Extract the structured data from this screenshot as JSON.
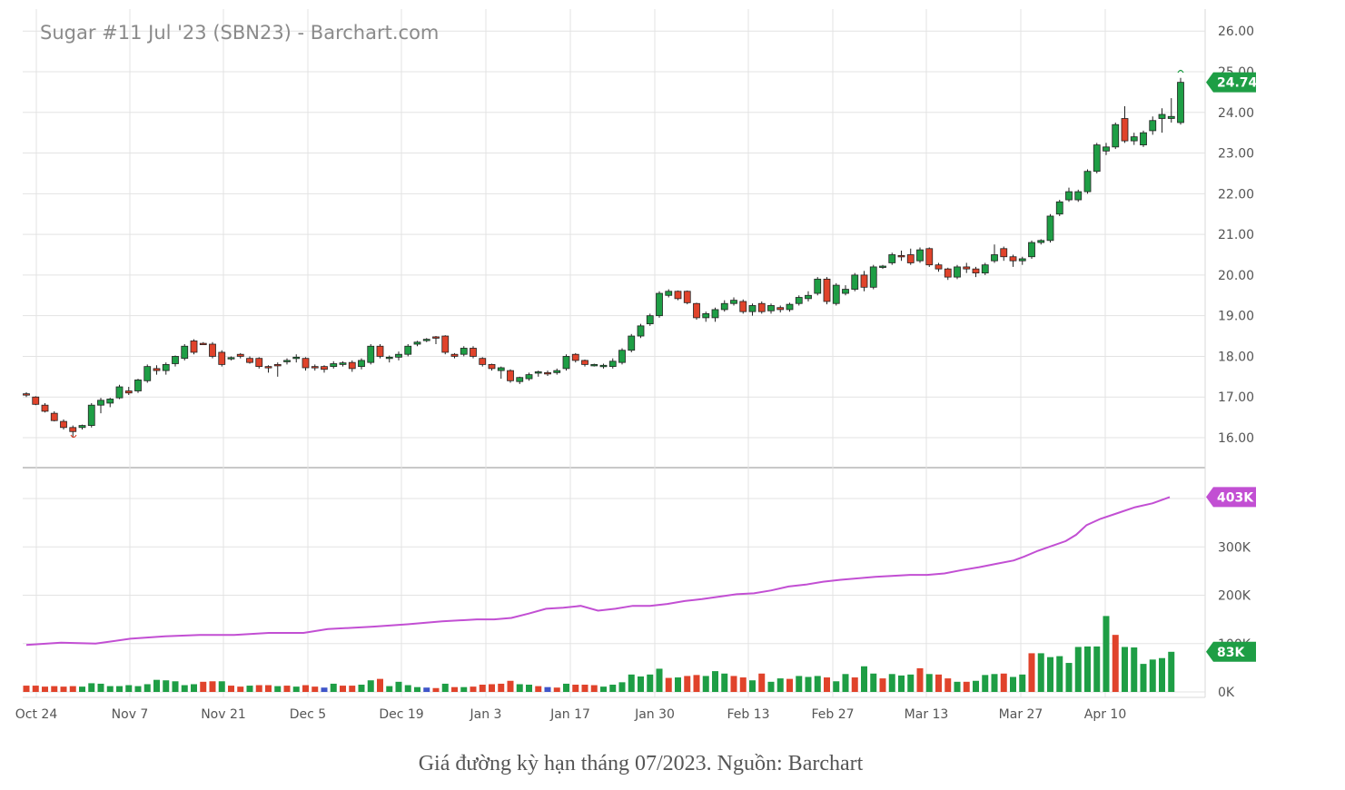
{
  "caption": "Giá đường kỳ hạn tháng 07/2023. Nguồn: Barchart",
  "chart_data": {
    "type": "candlestick",
    "title": "Sugar #11 Jul '23 (SBN23) - Barchart.com",
    "price_axis": {
      "range": [
        15.3,
        26.4
      ],
      "ticks": [
        "26.00",
        "25.00",
        "24.00",
        "23.00",
        "22.00",
        "21.00",
        "20.00",
        "19.00",
        "18.00",
        "17.00",
        "16.00"
      ],
      "last_value_label": "24.74"
    },
    "volume_axis": {
      "range": [
        0,
        420000
      ],
      "ticks": [
        "400K",
        "300K",
        "200K",
        "100K",
        "0K"
      ],
      "open_interest_label": "403K",
      "volume_label": "83K"
    },
    "x_ticks": [
      "Oct 24",
      "Nov 7",
      "Nov 21",
      "Dec 5",
      "Dec 19",
      "Jan 3",
      "Jan 17",
      "Jan 30",
      "Feb 13",
      "Feb 27",
      "Mar 13",
      "Mar 27",
      "Apr 10"
    ],
    "grid": true,
    "colors": {
      "up": "#1e9e45",
      "down": "#e0432b",
      "open_interest": "#c24fd3",
      "unchanged": "#3f55c9",
      "last_label_bg": "#1e9e45",
      "oi_label_bg": "#c24fd3"
    },
    "candles": [
      [
        17.08,
        17.12,
        17.0,
        17.05
      ],
      [
        17.0,
        17.02,
        16.8,
        16.82
      ],
      [
        16.8,
        16.85,
        16.62,
        16.65
      ],
      [
        16.6,
        16.65,
        16.4,
        16.42
      ],
      [
        16.4,
        16.45,
        16.2,
        16.25
      ],
      [
        16.25,
        16.3,
        16.0,
        16.15
      ],
      [
        16.25,
        16.32,
        16.2,
        16.3
      ],
      [
        16.3,
        16.85,
        16.25,
        16.8
      ],
      [
        16.8,
        16.98,
        16.6,
        16.92
      ],
      [
        16.85,
        16.98,
        16.75,
        16.95
      ],
      [
        16.98,
        17.3,
        16.95,
        17.25
      ],
      [
        17.15,
        17.25,
        17.05,
        17.1
      ],
      [
        17.15,
        17.45,
        17.1,
        17.42
      ],
      [
        17.4,
        17.8,
        17.35,
        17.75
      ],
      [
        17.7,
        17.78,
        17.55,
        17.65
      ],
      [
        17.65,
        17.85,
        17.55,
        17.8
      ],
      [
        17.82,
        18.02,
        17.75,
        18.0
      ],
      [
        17.95,
        18.3,
        17.9,
        18.25
      ],
      [
        18.38,
        18.42,
        18.05,
        18.1
      ],
      [
        18.32,
        18.35,
        18.28,
        18.3
      ],
      [
        18.3,
        18.35,
        17.95,
        18.0
      ],
      [
        18.1,
        18.15,
        17.75,
        17.8
      ],
      [
        17.95,
        18.0,
        17.9,
        17.97
      ],
      [
        18.05,
        18.08,
        17.95,
        18.0
      ],
      [
        17.95,
        18.0,
        17.82,
        17.85
      ],
      [
        17.95,
        17.98,
        17.7,
        17.75
      ],
      [
        17.75,
        17.78,
        17.6,
        17.72
      ],
      [
        17.8,
        17.85,
        17.5,
        17.78
      ],
      [
        17.88,
        17.95,
        17.8,
        17.9
      ],
      [
        17.95,
        18.05,
        17.85,
        17.98
      ],
      [
        17.95,
        17.98,
        17.65,
        17.72
      ],
      [
        17.75,
        17.8,
        17.65,
        17.72
      ],
      [
        17.75,
        17.78,
        17.6,
        17.68
      ],
      [
        17.75,
        17.88,
        17.7,
        17.82
      ],
      [
        17.8,
        17.88,
        17.75,
        17.84
      ],
      [
        17.85,
        17.9,
        17.62,
        17.7
      ],
      [
        17.75,
        17.95,
        17.68,
        17.9
      ],
      [
        17.85,
        18.3,
        17.8,
        18.25
      ],
      [
        18.25,
        18.3,
        17.95,
        18.0
      ],
      [
        17.95,
        18.02,
        17.85,
        17.98
      ],
      [
        17.98,
        18.12,
        17.9,
        18.05
      ],
      [
        18.05,
        18.3,
        18.0,
        18.25
      ],
      [
        18.3,
        18.38,
        18.25,
        18.35
      ],
      [
        18.4,
        18.45,
        18.35,
        18.42
      ],
      [
        18.48,
        18.5,
        18.3,
        18.45
      ],
      [
        18.5,
        18.52,
        18.05,
        18.1
      ],
      [
        18.05,
        18.08,
        17.95,
        18.0
      ],
      [
        18.05,
        18.25,
        18.0,
        18.2
      ],
      [
        18.2,
        18.25,
        17.95,
        18.0
      ],
      [
        17.95,
        17.98,
        17.75,
        17.8
      ],
      [
        17.8,
        17.82,
        17.65,
        17.7
      ],
      [
        17.65,
        17.75,
        17.45,
        17.72
      ],
      [
        17.65,
        17.68,
        17.35,
        17.4
      ],
      [
        17.38,
        17.5,
        17.32,
        17.48
      ],
      [
        17.45,
        17.6,
        17.4,
        17.55
      ],
      [
        17.6,
        17.65,
        17.5,
        17.62
      ],
      [
        17.6,
        17.65,
        17.52,
        17.58
      ],
      [
        17.6,
        17.7,
        17.55,
        17.65
      ],
      [
        17.7,
        18.05,
        17.65,
        18.0
      ],
      [
        18.05,
        18.08,
        17.85,
        17.9
      ],
      [
        17.9,
        17.92,
        17.75,
        17.8
      ],
      [
        17.78,
        17.82,
        17.75,
        17.8
      ],
      [
        17.78,
        17.82,
        17.7,
        17.78
      ],
      [
        17.75,
        17.95,
        17.7,
        17.88
      ],
      [
        17.85,
        18.2,
        17.8,
        18.15
      ],
      [
        18.15,
        18.55,
        18.1,
        18.5
      ],
      [
        18.5,
        18.8,
        18.45,
        18.75
      ],
      [
        18.8,
        19.05,
        18.75,
        19.0
      ],
      [
        19.0,
        19.6,
        18.95,
        19.55
      ],
      [
        19.5,
        19.65,
        19.45,
        19.6
      ],
      [
        19.6,
        19.62,
        19.38,
        19.42
      ],
      [
        19.6,
        19.62,
        19.28,
        19.32
      ],
      [
        19.3,
        19.32,
        18.9,
        18.95
      ],
      [
        18.95,
        19.1,
        18.85,
        19.05
      ],
      [
        18.95,
        19.2,
        18.85,
        19.15
      ],
      [
        19.15,
        19.38,
        19.1,
        19.3
      ],
      [
        19.3,
        19.45,
        19.25,
        19.38
      ],
      [
        19.35,
        19.4,
        19.05,
        19.1
      ],
      [
        19.1,
        19.3,
        19.0,
        19.25
      ],
      [
        19.3,
        19.35,
        19.05,
        19.1
      ],
      [
        19.12,
        19.3,
        19.05,
        19.25
      ],
      [
        19.2,
        19.25,
        19.08,
        19.15
      ],
      [
        19.15,
        19.32,
        19.1,
        19.28
      ],
      [
        19.3,
        19.5,
        19.25,
        19.45
      ],
      [
        19.42,
        19.6,
        19.35,
        19.5
      ],
      [
        19.55,
        19.95,
        19.5,
        19.9
      ],
      [
        19.9,
        19.95,
        19.28,
        19.35
      ],
      [
        19.3,
        19.8,
        19.25,
        19.75
      ],
      [
        19.55,
        19.75,
        19.5,
        19.65
      ],
      [
        19.65,
        20.05,
        19.6,
        20.0
      ],
      [
        20.0,
        20.1,
        19.6,
        19.7
      ],
      [
        19.7,
        20.25,
        19.65,
        20.2
      ],
      [
        20.2,
        20.25,
        20.15,
        20.22
      ],
      [
        20.3,
        20.55,
        20.25,
        20.5
      ],
      [
        20.48,
        20.6,
        20.35,
        20.45
      ],
      [
        20.5,
        20.65,
        20.25,
        20.3
      ],
      [
        20.35,
        20.68,
        20.3,
        20.62
      ],
      [
        20.65,
        20.68,
        20.2,
        20.25
      ],
      [
        20.25,
        20.3,
        20.08,
        20.15
      ],
      [
        20.15,
        20.18,
        19.88,
        19.95
      ],
      [
        19.95,
        20.25,
        19.9,
        20.2
      ],
      [
        20.2,
        20.3,
        20.05,
        20.15
      ],
      [
        20.15,
        20.2,
        19.95,
        20.05
      ],
      [
        20.05,
        20.3,
        20.0,
        20.25
      ],
      [
        20.35,
        20.75,
        20.3,
        20.5
      ],
      [
        20.65,
        20.7,
        20.35,
        20.45
      ],
      [
        20.45,
        20.5,
        20.2,
        20.35
      ],
      [
        20.35,
        20.45,
        20.25,
        20.4
      ],
      [
        20.45,
        20.85,
        20.4,
        20.8
      ],
      [
        20.8,
        20.88,
        20.75,
        20.85
      ],
      [
        20.85,
        21.5,
        20.8,
        21.45
      ],
      [
        21.5,
        21.85,
        21.45,
        21.8
      ],
      [
        21.85,
        22.15,
        21.8,
        22.05
      ],
      [
        21.85,
        22.1,
        21.8,
        22.05
      ],
      [
        22.05,
        22.6,
        22.0,
        22.55
      ],
      [
        22.55,
        23.25,
        22.5,
        23.2
      ],
      [
        23.05,
        23.25,
        22.95,
        23.15
      ],
      [
        23.15,
        23.75,
        23.1,
        23.7
      ],
      [
        23.85,
        24.15,
        23.25,
        23.3
      ],
      [
        23.3,
        23.5,
        23.2,
        23.4
      ],
      [
        23.2,
        23.55,
        23.15,
        23.5
      ],
      [
        23.55,
        23.9,
        23.45,
        23.8
      ],
      [
        23.85,
        24.1,
        23.5,
        23.95
      ],
      [
        23.85,
        24.35,
        23.75,
        23.9
      ],
      [
        23.75,
        24.85,
        23.7,
        24.74
      ]
    ],
    "volume": [
      [
        13000,
        "down"
      ],
      [
        13000,
        "down"
      ],
      [
        11000,
        "down"
      ],
      [
        12000,
        "down"
      ],
      [
        11000,
        "down"
      ],
      [
        12000,
        "down"
      ],
      [
        11000,
        "up"
      ],
      [
        18000,
        "up"
      ],
      [
        17000,
        "up"
      ],
      [
        12000,
        "up"
      ],
      [
        12000,
        "up"
      ],
      [
        14000,
        "up"
      ],
      [
        12000,
        "up"
      ],
      [
        16000,
        "up"
      ],
      [
        25000,
        "up"
      ],
      [
        24000,
        "up"
      ],
      [
        22000,
        "up"
      ],
      [
        14000,
        "up"
      ],
      [
        16000,
        "up"
      ],
      [
        21000,
        "down"
      ],
      [
        22000,
        "down"
      ],
      [
        22000,
        "up"
      ],
      [
        13000,
        "down"
      ],
      [
        11000,
        "down"
      ],
      [
        13000,
        "up"
      ],
      [
        14000,
        "down"
      ],
      [
        14000,
        "down"
      ],
      [
        12000,
        "up"
      ],
      [
        13000,
        "down"
      ],
      [
        11000,
        "up"
      ],
      [
        14000,
        "down"
      ],
      [
        11000,
        "down"
      ],
      [
        9000,
        "unchanged"
      ],
      [
        17000,
        "up"
      ],
      [
        13000,
        "down"
      ],
      [
        13000,
        "down"
      ],
      [
        15000,
        "up"
      ],
      [
        24000,
        "up"
      ],
      [
        27000,
        "down"
      ],
      [
        12000,
        "up"
      ],
      [
        21000,
        "up"
      ],
      [
        14000,
        "up"
      ],
      [
        10000,
        "up"
      ],
      [
        9000,
        "unchanged"
      ],
      [
        8000,
        "down"
      ],
      [
        17000,
        "up"
      ],
      [
        10000,
        "down"
      ],
      [
        10000,
        "up"
      ],
      [
        11000,
        "down"
      ],
      [
        15000,
        "down"
      ],
      [
        16000,
        "down"
      ],
      [
        17000,
        "down"
      ],
      [
        23000,
        "down"
      ],
      [
        16000,
        "up"
      ],
      [
        15000,
        "up"
      ],
      [
        12000,
        "down"
      ],
      [
        10000,
        "unchanged"
      ],
      [
        9000,
        "down"
      ],
      [
        17000,
        "up"
      ],
      [
        15000,
        "down"
      ],
      [
        15000,
        "down"
      ],
      [
        14000,
        "down"
      ],
      [
        11000,
        "up"
      ],
      [
        15000,
        "up"
      ],
      [
        20000,
        "up"
      ],
      [
        36000,
        "up"
      ],
      [
        32000,
        "up"
      ],
      [
        36000,
        "up"
      ],
      [
        48000,
        "up"
      ],
      [
        29000,
        "down"
      ],
      [
        30000,
        "up"
      ],
      [
        33000,
        "down"
      ],
      [
        35000,
        "down"
      ],
      [
        33000,
        "up"
      ],
      [
        43000,
        "up"
      ],
      [
        38000,
        "up"
      ],
      [
        33000,
        "down"
      ],
      [
        30000,
        "down"
      ],
      [
        24000,
        "up"
      ],
      [
        38000,
        "down"
      ],
      [
        21000,
        "up"
      ],
      [
        28000,
        "up"
      ],
      [
        27000,
        "down"
      ],
      [
        33000,
        "up"
      ],
      [
        31000,
        "up"
      ],
      [
        33000,
        "up"
      ],
      [
        30000,
        "down"
      ],
      [
        22000,
        "up"
      ],
      [
        37000,
        "up"
      ],
      [
        30000,
        "down"
      ],
      [
        53000,
        "up"
      ],
      [
        38000,
        "up"
      ],
      [
        28000,
        "down"
      ],
      [
        37000,
        "up"
      ],
      [
        34000,
        "up"
      ],
      [
        36000,
        "up"
      ],
      [
        49000,
        "down"
      ],
      [
        37000,
        "up"
      ],
      [
        36000,
        "down"
      ],
      [
        28000,
        "down"
      ],
      [
        21000,
        "up"
      ],
      [
        21000,
        "down"
      ],
      [
        23000,
        "up"
      ],
      [
        35000,
        "up"
      ],
      [
        37000,
        "up"
      ],
      [
        38000,
        "down"
      ],
      [
        31000,
        "up"
      ],
      [
        36000,
        "up"
      ],
      [
        80000,
        "down"
      ],
      [
        80000,
        "up"
      ],
      [
        72000,
        "up"
      ],
      [
        74000,
        "up"
      ],
      [
        60000,
        "up"
      ],
      [
        93000,
        "up"
      ],
      [
        94000,
        "up"
      ],
      [
        94000,
        "up"
      ],
      [
        157000,
        "up"
      ],
      [
        118000,
        "down"
      ],
      [
        93000,
        "up"
      ],
      [
        92000,
        "up"
      ],
      [
        58000,
        "up"
      ],
      [
        67000,
        "up"
      ],
      [
        70000,
        "up"
      ],
      [
        83000,
        "up"
      ]
    ],
    "open_interest": [
      [
        0,
        97000
      ],
      [
        10,
        102000
      ],
      [
        20,
        100000
      ],
      [
        30,
        110000
      ],
      [
        40,
        115000
      ],
      [
        50,
        118000
      ],
      [
        60,
        118000
      ],
      [
        70,
        122000
      ],
      [
        80,
        122000
      ],
      [
        87,
        130000
      ],
      [
        100,
        135000
      ],
      [
        110,
        140000
      ],
      [
        120,
        146000
      ],
      [
        130,
        150000
      ],
      [
        135,
        150000
      ],
      [
        140,
        153000
      ],
      [
        145,
        162000
      ],
      [
        150,
        172000
      ],
      [
        155,
        174000
      ],
      [
        160,
        178000
      ],
      [
        165,
        168000
      ],
      [
        170,
        172000
      ],
      [
        175,
        178000
      ],
      [
        180,
        178000
      ],
      [
        185,
        182000
      ],
      [
        190,
        188000
      ],
      [
        195,
        192000
      ],
      [
        205,
        202000
      ],
      [
        210,
        204000
      ],
      [
        215,
        210000
      ],
      [
        220,
        218000
      ],
      [
        225,
        222000
      ],
      [
        230,
        228000
      ],
      [
        235,
        232000
      ],
      [
        245,
        238000
      ],
      [
        255,
        242000
      ],
      [
        260,
        242000
      ],
      [
        265,
        245000
      ],
      [
        270,
        252000
      ],
      [
        275,
        258000
      ],
      [
        280,
        265000
      ],
      [
        285,
        272000
      ],
      [
        288,
        280000
      ],
      [
        292,
        292000
      ],
      [
        296,
        302000
      ],
      [
        300,
        312000
      ],
      [
        303,
        325000
      ],
      [
        306,
        345000
      ],
      [
        310,
        358000
      ],
      [
        315,
        370000
      ],
      [
        320,
        382000
      ],
      [
        325,
        390000
      ],
      [
        330,
        403000
      ]
    ]
  }
}
